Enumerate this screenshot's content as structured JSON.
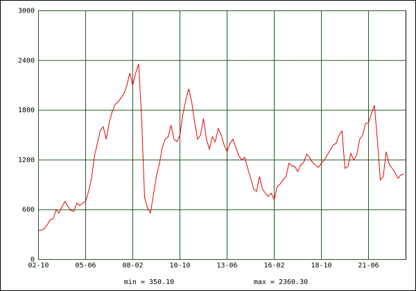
{
  "chart_data": {
    "type": "line",
    "x": [
      "02-10",
      "02-12",
      "03-02",
      "03-04",
      "03-06",
      "03-08",
      "03-10",
      "03-12",
      "04-02",
      "04-04",
      "04-06",
      "04-08",
      "04-10",
      "04-12",
      "05-02",
      "05-04",
      "05-06",
      "05-08",
      "05-10",
      "05-12",
      "06-02",
      "06-04",
      "06-06",
      "06-08",
      "06-10",
      "06-12",
      "07-02",
      "07-04",
      "07-06",
      "07-08",
      "07-10",
      "07-12",
      "08-02",
      "08-04",
      "08-06",
      "08-08",
      "08-10",
      "08-12",
      "09-02",
      "09-04",
      "09-06",
      "09-08",
      "09-10",
      "09-12",
      "10-02",
      "10-04",
      "10-06",
      "10-08",
      "10-10",
      "10-12",
      "11-02",
      "11-04",
      "11-06",
      "11-08",
      "11-10",
      "11-12",
      "12-02",
      "12-04",
      "12-06",
      "12-08",
      "12-10",
      "12-12",
      "13-02",
      "13-04",
      "13-06",
      "13-08",
      "13-10",
      "13-12",
      "14-02",
      "14-04",
      "14-06",
      "14-08",
      "14-10",
      "14-12",
      "15-02",
      "15-04",
      "15-06",
      "15-08",
      "15-10",
      "15-12",
      "16-02",
      "16-04",
      "16-06",
      "16-08",
      "16-10",
      "16-12",
      "17-02",
      "17-04",
      "17-06",
      "17-08",
      "17-10",
      "17-12",
      "18-02",
      "18-04",
      "18-06",
      "18-08",
      "18-10",
      "18-12",
      "19-02",
      "19-04",
      "19-06",
      "19-08",
      "19-10",
      "19-12",
      "20-02",
      "20-04",
      "20-06",
      "20-08",
      "20-10",
      "20-12",
      "21-02",
      "21-04",
      "21-06",
      "21-08",
      "21-10",
      "21-12",
      "22-02",
      "22-04",
      "22-06",
      "22-08",
      "22-10",
      "22-12",
      "23-02",
      "23-04",
      "23-06"
    ],
    "series": [
      {
        "color": "#e00000",
        "values": [
          350,
          355,
          370,
          420,
          480,
          490,
          600,
          560,
          640,
          700,
          640,
          590,
          580,
          680,
          650,
          680,
          700,
          820,
          980,
          1250,
          1400,
          1560,
          1600,
          1450,
          1650,
          1780,
          1870,
          1900,
          1950,
          2000,
          2100,
          2250,
          2100,
          2250,
          2360,
          1700,
          750,
          620,
          560,
          780,
          1000,
          1150,
          1350,
          1450,
          1480,
          1620,
          1450,
          1420,
          1500,
          1750,
          1920,
          2060,
          1900,
          1650,
          1450,
          1500,
          1700,
          1450,
          1330,
          1480,
          1420,
          1580,
          1500,
          1380,
          1300,
          1400,
          1450,
          1350,
          1250,
          1200,
          1230,
          1100,
          980,
          850,
          820,
          1000,
          850,
          800,
          760,
          800,
          720,
          880,
          910,
          960,
          1000,
          1160,
          1130,
          1120,
          1060,
          1140,
          1170,
          1270,
          1230,
          1170,
          1140,
          1110,
          1160,
          1200,
          1260,
          1320,
          1380,
          1400,
          1500,
          1550,
          1100,
          1120,
          1280,
          1200,
          1260,
          1450,
          1500,
          1640,
          1650,
          1760,
          1860,
          1450,
          960,
          1000,
          1300,
          1150,
          1100,
          1050,
          980,
          1020,
          1030
        ]
      }
    ],
    "xticks": [
      "02-10",
      "05-06",
      "08-02",
      "10-10",
      "13-06",
      "16-02",
      "18-10",
      "21-06"
    ],
    "ylim": [
      0,
      3000
    ],
    "yticks": [
      0,
      600,
      1200,
      1800,
      2400,
      3000
    ],
    "grid": true,
    "min_label": "min = 350.10",
    "max_label": "max = 2360.30"
  }
}
